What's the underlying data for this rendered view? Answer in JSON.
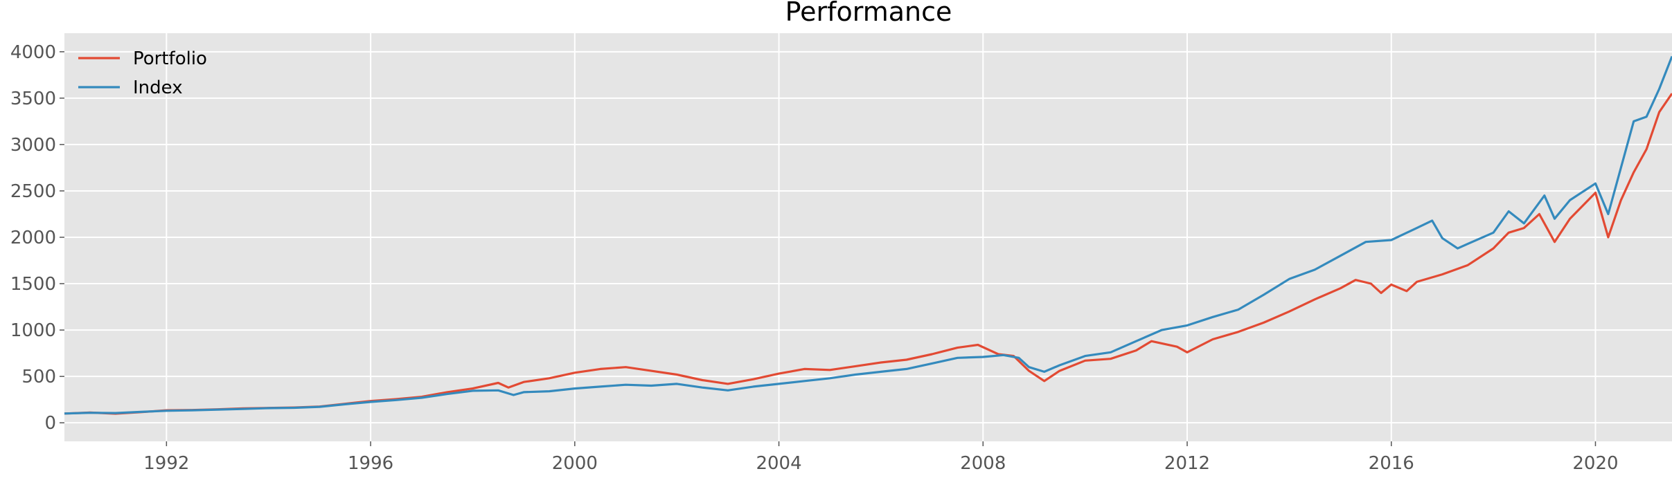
{
  "chart_data": {
    "type": "line",
    "title": "Performance",
    "xlabel": "",
    "ylabel": "",
    "xlim": [
      1990.0,
      2021.5
    ],
    "ylim": [
      -200,
      4200
    ],
    "grid": true,
    "legend_position": "top-left",
    "x_ticks": [
      1992,
      1996,
      2000,
      2004,
      2008,
      2012,
      2016,
      2020
    ],
    "y_ticks": [
      0,
      500,
      1000,
      1500,
      2000,
      2500,
      3000,
      3500,
      4000
    ],
    "series": [
      {
        "name": "Portfolio",
        "color": "#E24A33",
        "points": [
          [
            1990.0,
            100
          ],
          [
            1990.5,
            110
          ],
          [
            1991.0,
            98
          ],
          [
            1991.5,
            115
          ],
          [
            1992.0,
            135
          ],
          [
            1992.5,
            138
          ],
          [
            1993.0,
            145
          ],
          [
            1993.5,
            155
          ],
          [
            1994.0,
            160
          ],
          [
            1994.5,
            165
          ],
          [
            1995.0,
            175
          ],
          [
            1995.5,
            205
          ],
          [
            1996.0,
            235
          ],
          [
            1996.5,
            255
          ],
          [
            1997.0,
            280
          ],
          [
            1997.5,
            330
          ],
          [
            1998.0,
            370
          ],
          [
            1998.5,
            430
          ],
          [
            1998.7,
            380
          ],
          [
            1999.0,
            440
          ],
          [
            1999.5,
            480
          ],
          [
            2000.0,
            540
          ],
          [
            2000.5,
            580
          ],
          [
            2001.0,
            600
          ],
          [
            2001.5,
            560
          ],
          [
            2002.0,
            520
          ],
          [
            2002.5,
            460
          ],
          [
            2003.0,
            420
          ],
          [
            2003.5,
            470
          ],
          [
            2004.0,
            530
          ],
          [
            2004.5,
            580
          ],
          [
            2005.0,
            570
          ],
          [
            2005.5,
            610
          ],
          [
            2006.0,
            650
          ],
          [
            2006.5,
            680
          ],
          [
            2007.0,
            740
          ],
          [
            2007.5,
            810
          ],
          [
            2007.9,
            840
          ],
          [
            2008.3,
            740
          ],
          [
            2008.6,
            720
          ],
          [
            2008.9,
            560
          ],
          [
            2009.2,
            450
          ],
          [
            2009.5,
            560
          ],
          [
            2010.0,
            670
          ],
          [
            2010.5,
            690
          ],
          [
            2011.0,
            780
          ],
          [
            2011.3,
            880
          ],
          [
            2011.8,
            820
          ],
          [
            2012.0,
            760
          ],
          [
            2012.5,
            900
          ],
          [
            2013.0,
            980
          ],
          [
            2013.5,
            1080
          ],
          [
            2014.0,
            1200
          ],
          [
            2014.5,
            1330
          ],
          [
            2015.0,
            1450
          ],
          [
            2015.3,
            1540
          ],
          [
            2015.6,
            1500
          ],
          [
            2015.8,
            1400
          ],
          [
            2016.0,
            1490
          ],
          [
            2016.3,
            1420
          ],
          [
            2016.5,
            1520
          ],
          [
            2017.0,
            1600
          ],
          [
            2017.5,
            1700
          ],
          [
            2018.0,
            1880
          ],
          [
            2018.3,
            2050
          ],
          [
            2018.6,
            2100
          ],
          [
            2018.9,
            2250
          ],
          [
            2019.2,
            1950
          ],
          [
            2019.5,
            2200
          ],
          [
            2020.0,
            2480
          ],
          [
            2020.25,
            2000
          ],
          [
            2020.5,
            2400
          ],
          [
            2020.75,
            2700
          ],
          [
            2021.0,
            2950
          ],
          [
            2021.25,
            3350
          ],
          [
            2021.5,
            3550
          ]
        ]
      },
      {
        "name": "Index",
        "color": "#348ABD",
        "points": [
          [
            1990.0,
            100
          ],
          [
            1990.5,
            108
          ],
          [
            1991.0,
            105
          ],
          [
            1991.5,
            118
          ],
          [
            1992.0,
            130
          ],
          [
            1992.5,
            135
          ],
          [
            1993.0,
            142
          ],
          [
            1993.5,
            150
          ],
          [
            1994.0,
            158
          ],
          [
            1994.5,
            162
          ],
          [
            1995.0,
            172
          ],
          [
            1995.5,
            200
          ],
          [
            1996.0,
            225
          ],
          [
            1996.5,
            245
          ],
          [
            1997.0,
            270
          ],
          [
            1997.5,
            310
          ],
          [
            1998.0,
            345
          ],
          [
            1998.5,
            350
          ],
          [
            1998.8,
            300
          ],
          [
            1999.0,
            330
          ],
          [
            1999.5,
            340
          ],
          [
            2000.0,
            370
          ],
          [
            2000.5,
            390
          ],
          [
            2001.0,
            410
          ],
          [
            2001.5,
            400
          ],
          [
            2002.0,
            420
          ],
          [
            2002.5,
            380
          ],
          [
            2003.0,
            350
          ],
          [
            2003.5,
            390
          ],
          [
            2004.0,
            420
          ],
          [
            2004.5,
            450
          ],
          [
            2005.0,
            480
          ],
          [
            2005.5,
            520
          ],
          [
            2006.0,
            550
          ],
          [
            2006.5,
            580
          ],
          [
            2007.0,
            640
          ],
          [
            2007.5,
            700
          ],
          [
            2008.0,
            710
          ],
          [
            2008.4,
            730
          ],
          [
            2008.7,
            700
          ],
          [
            2008.9,
            600
          ],
          [
            2009.2,
            550
          ],
          [
            2009.5,
            620
          ],
          [
            2010.0,
            720
          ],
          [
            2010.5,
            760
          ],
          [
            2011.0,
            880
          ],
          [
            2011.5,
            1000
          ],
          [
            2012.0,
            1050
          ],
          [
            2012.5,
            1140
          ],
          [
            2013.0,
            1220
          ],
          [
            2013.5,
            1380
          ],
          [
            2014.0,
            1550
          ],
          [
            2014.5,
            1650
          ],
          [
            2015.0,
            1800
          ],
          [
            2015.5,
            1950
          ],
          [
            2016.0,
            1970
          ],
          [
            2016.5,
            2100
          ],
          [
            2016.8,
            2180
          ],
          [
            2017.0,
            1990
          ],
          [
            2017.3,
            1880
          ],
          [
            2017.5,
            1930
          ],
          [
            2018.0,
            2050
          ],
          [
            2018.3,
            2280
          ],
          [
            2018.6,
            2150
          ],
          [
            2019.0,
            2450
          ],
          [
            2019.2,
            2200
          ],
          [
            2019.5,
            2400
          ],
          [
            2020.0,
            2580
          ],
          [
            2020.25,
            2250
          ],
          [
            2020.5,
            2750
          ],
          [
            2020.75,
            3250
          ],
          [
            2021.0,
            3300
          ],
          [
            2021.25,
            3600
          ],
          [
            2021.5,
            3950
          ]
        ]
      }
    ]
  }
}
